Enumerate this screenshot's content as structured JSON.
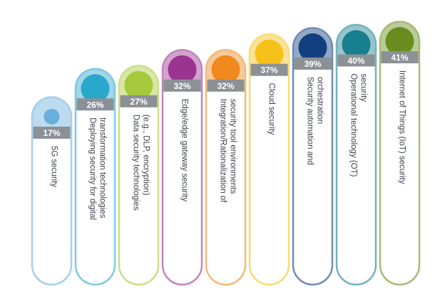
{
  "chart_data": {
    "type": "bar",
    "categories": [
      [
        "5G security"
      ],
      [
        "Deploying security for digital",
        "transformation technologies"
      ],
      [
        "Data security technologies",
        "(e.g., DLP, encryption)"
      ],
      [
        "Edge/edge gateway security"
      ],
      [
        "Integration/Rationalization of",
        "security tool environments"
      ],
      [
        "Cloud security"
      ],
      [
        "Security automation and",
        "orchestration"
      ],
      [
        "Operational technology (OT)",
        "security"
      ],
      [
        "Internet of Things (IoT) security"
      ]
    ],
    "values": [
      17,
      26,
      27,
      32,
      32,
      37,
      39,
      40,
      41
    ],
    "value_labels": [
      "17%",
      "26%",
      "27%",
      "32%",
      "32%",
      "37%",
      "39%",
      "40%",
      "41%"
    ],
    "colors": [
      "#6aaedb",
      "#2aa7cc",
      "#a5c93a",
      "#9b3390",
      "#f08a1e",
      "#f6c11a",
      "#123f80",
      "#187f8e",
      "#6a8c1e"
    ],
    "ylim": [
      0,
      45
    ]
  }
}
